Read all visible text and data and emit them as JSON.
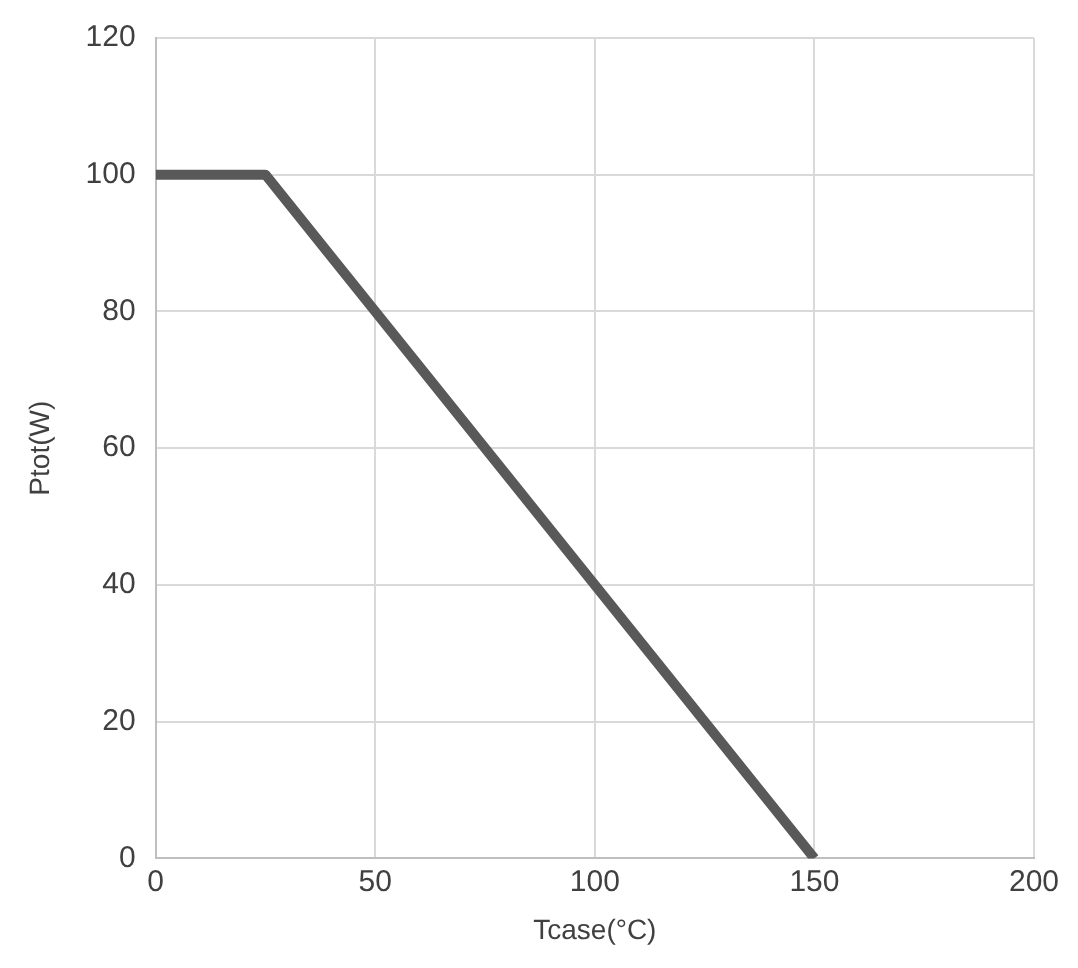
{
  "chart_data": {
    "type": "line",
    "xlabel": "Tcase(°C)",
    "ylabel": "Ptot(W)",
    "x": [
      0,
      25,
      150
    ],
    "series": [
      {
        "color": "#595959",
        "values": [
          100,
          100,
          0
        ]
      }
    ],
    "xlim": [
      0,
      200
    ],
    "xticks": [
      0,
      50,
      100,
      150,
      200
    ],
    "ylim": [
      0,
      120
    ],
    "yticks": [
      0,
      20,
      40,
      60,
      80,
      100,
      120
    ],
    "grid": true,
    "legend": false,
    "marker": "none",
    "line_style": "solid"
  }
}
